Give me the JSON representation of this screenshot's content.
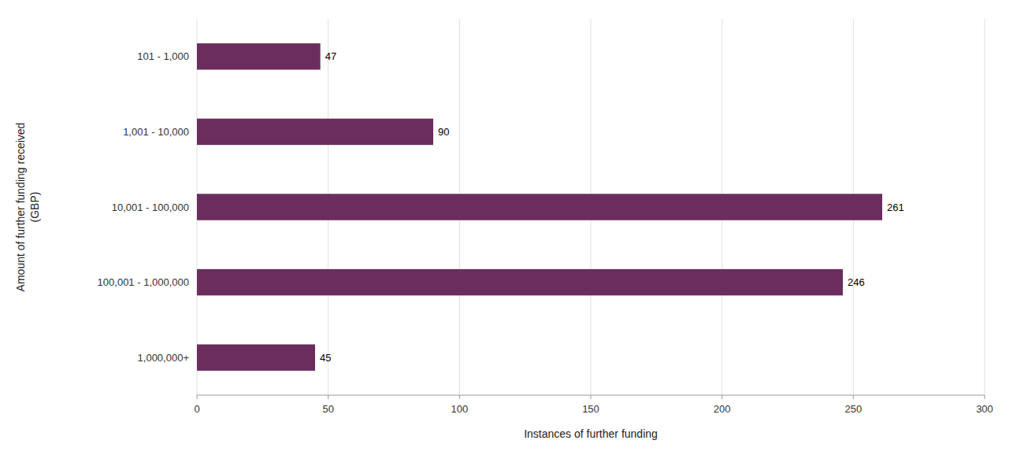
{
  "chart_data": {
    "type": "bar",
    "orientation": "horizontal",
    "categories": [
      "101 - 1,000",
      "1,001 - 10,000",
      "10,001 - 100,000",
      "100,001 - 1,000,000",
      "1,000,000+"
    ],
    "values": [
      47,
      90,
      261,
      246,
      45
    ],
    "color": "#6b2d5e",
    "xlabel": "Instances of further funding",
    "ylabel": "Amount of further funding received\n(GBP)",
    "xlim": [
      0,
      300
    ],
    "xticks": [
      0,
      50,
      100,
      150,
      200,
      250,
      300
    ],
    "grid": true,
    "data_labels": true
  }
}
